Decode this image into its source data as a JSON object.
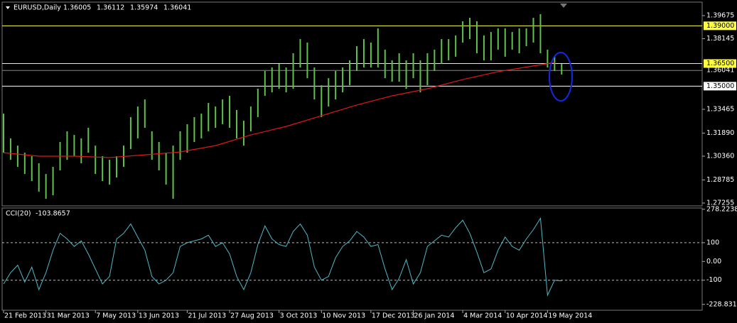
{
  "chart_data": [
    {
      "type": "ohlc",
      "title": "EURUSD,Daily",
      "header_values": [
        1.36005,
        1.36112,
        1.35974,
        1.36041
      ],
      "categories": [
        "21 Feb 2013",
        null,
        null,
        null,
        null,
        null,
        "31 Mar 2013",
        null,
        null,
        null,
        null,
        null,
        null,
        "7 May 2013",
        null,
        null,
        null,
        null,
        null,
        "13 Jun 2013",
        null,
        null,
        null,
        null,
        null,
        null,
        "21 Jul 2013",
        null,
        null,
        null,
        null,
        null,
        "27 Aug 2013",
        null,
        null,
        null,
        null,
        null,
        null,
        "3 Oct 2013",
        null,
        null,
        null,
        null,
        null,
        "10 Nov 2013",
        null,
        null,
        null,
        null,
        null,
        null,
        "17 Dec 2013",
        null,
        null,
        null,
        null,
        null,
        "26 Jan 2014",
        null,
        null,
        null,
        null,
        null,
        null,
        "4 Mar 2014",
        null,
        null,
        null,
        null,
        null,
        "10 Apr 2014",
        null,
        null,
        null,
        null,
        null,
        "19 May 2014",
        null,
        null
      ],
      "high": [
        1.3318,
        1.3154,
        1.3106,
        1.3059,
        1.3036,
        1.2989,
        1.2918,
        1.2965,
        1.313,
        1.3201,
        1.3177,
        1.3154,
        1.3224,
        1.3106,
        1.3036,
        1.3012,
        1.3036,
        1.3106,
        1.3295,
        1.3365,
        1.3412,
        1.3201,
        1.313,
        1.3059,
        1.3106,
        1.3201,
        1.3248,
        1.3295,
        1.3318,
        1.3389,
        1.3365,
        1.3412,
        1.3436,
        1.3342,
        1.3271,
        1.3365,
        1.3483,
        1.3601,
        1.3624,
        1.3648,
        1.3624,
        1.3718,
        1.3812,
        1.3789,
        1.3624,
        1.3506,
        1.3553,
        1.3601,
        1.3624,
        1.3671,
        1.3765,
        1.3812,
        1.3789,
        1.3883,
        1.3742,
        1.3671,
        1.3718,
        1.3671,
        1.3718,
        1.3671,
        1.3718,
        1.3742,
        1.3812,
        1.3812,
        1.3836,
        1.393,
        1.3953,
        1.393,
        1.3836,
        1.3859,
        1.3883,
        1.3883,
        1.3859,
        1.3883,
        1.3883,
        1.3953,
        1.3977,
        1.3742,
        1.3695,
        1.3648
      ],
      "low": [
        1.3059,
        1.3012,
        1.2965,
        1.2918,
        1.2871,
        1.2801,
        1.2754,
        1.2777,
        1.2942,
        1.3012,
        1.3036,
        1.2989,
        1.3059,
        1.2918,
        1.2871,
        1.2848,
        1.2895,
        1.2965,
        1.3083,
        1.3154,
        1.3224,
        1.3012,
        1.2942,
        1.2848,
        1.2754,
        1.3012,
        1.3059,
        1.313,
        1.3154,
        1.3201,
        1.3224,
        1.3248,
        1.3224,
        1.3154,
        1.3106,
        1.3201,
        1.3295,
        1.3436,
        1.3459,
        1.3483,
        1.3459,
        1.3483,
        1.3624,
        1.3553,
        1.3412,
        1.3295,
        1.3365,
        1.3412,
        1.3459,
        1.3506,
        1.3601,
        1.3624,
        1.3624,
        1.3624,
        1.3553,
        1.353,
        1.353,
        1.3483,
        1.3553,
        1.3459,
        1.3506,
        1.3601,
        1.3648,
        1.3671,
        1.3695,
        1.3789,
        1.3812,
        1.3718,
        1.3671,
        1.3671,
        1.3742,
        1.3695,
        1.3742,
        1.3718,
        1.3765,
        1.3789,
        1.3718,
        1.3624,
        1.3601,
        1.3577
      ],
      "color": "#5fc24a",
      "ma": {
        "x": [
          0,
          5,
          10,
          15,
          20,
          25,
          30,
          35,
          40,
          45,
          50,
          55,
          60,
          65,
          70,
          75,
          78
        ],
        "values": [
          1.3059,
          1.3036,
          1.3036,
          1.3027,
          1.3045,
          1.3064,
          1.3106,
          1.3177,
          1.3233,
          1.3304,
          1.3375,
          1.3436,
          1.3483,
          1.3544,
          1.3596,
          1.3634,
          1.3657
        ],
        "color": "#e01818"
      },
      "ylim": [
        1.27067,
        1.40569
      ],
      "yticks": [
        1.39675,
        1.38145,
        1.33465,
        {
          "value": 1.3189,
          "label": "1.31890"
        },
        {
          "value": 1.3036,
          "label": "1.30360"
        },
        1.28785,
        1.27255
      ],
      "levels": [
        {
          "value": 1.39,
          "label": "1.39000",
          "color": "#ffff40"
        },
        {
          "value": 1.365,
          "label": "1.36500",
          "color": "#ffff40"
        },
        {
          "value": 1.35,
          "label": "1.35000",
          "color": "#ffffff"
        }
      ],
      "current": 1.36041
    },
    {
      "type": "line",
      "title": "CCI(20)",
      "last_value": -103.8657,
      "values": [
        -120,
        -60,
        -20,
        -110,
        -30,
        -150,
        -60,
        60,
        150,
        120,
        80,
        110,
        40,
        -40,
        -120,
        -80,
        120,
        150,
        200,
        130,
        60,
        -80,
        -120,
        -100,
        -60,
        80,
        100,
        110,
        120,
        140,
        80,
        100,
        40,
        -80,
        -150,
        -60,
        90,
        190,
        120,
        90,
        80,
        160,
        200,
        140,
        -30,
        -100,
        -80,
        20,
        80,
        110,
        160,
        130,
        80,
        90,
        -40,
        -150,
        -90,
        10,
        -120,
        -60,
        80,
        110,
        140,
        130,
        180,
        220,
        150,
        50,
        -60,
        -40,
        60,
        130,
        80,
        60,
        120,
        170,
        230,
        -180,
        -100,
        -104
      ],
      "color": "#4fb9c9",
      "ylim": [
        -260,
        285
      ],
      "yticks": [
        278.2238,
        100,
        {
          "value": 0,
          "label": "0.00"
        },
        -100,
        -228.8311
      ],
      "levels": [
        100,
        -100
      ]
    }
  ]
}
